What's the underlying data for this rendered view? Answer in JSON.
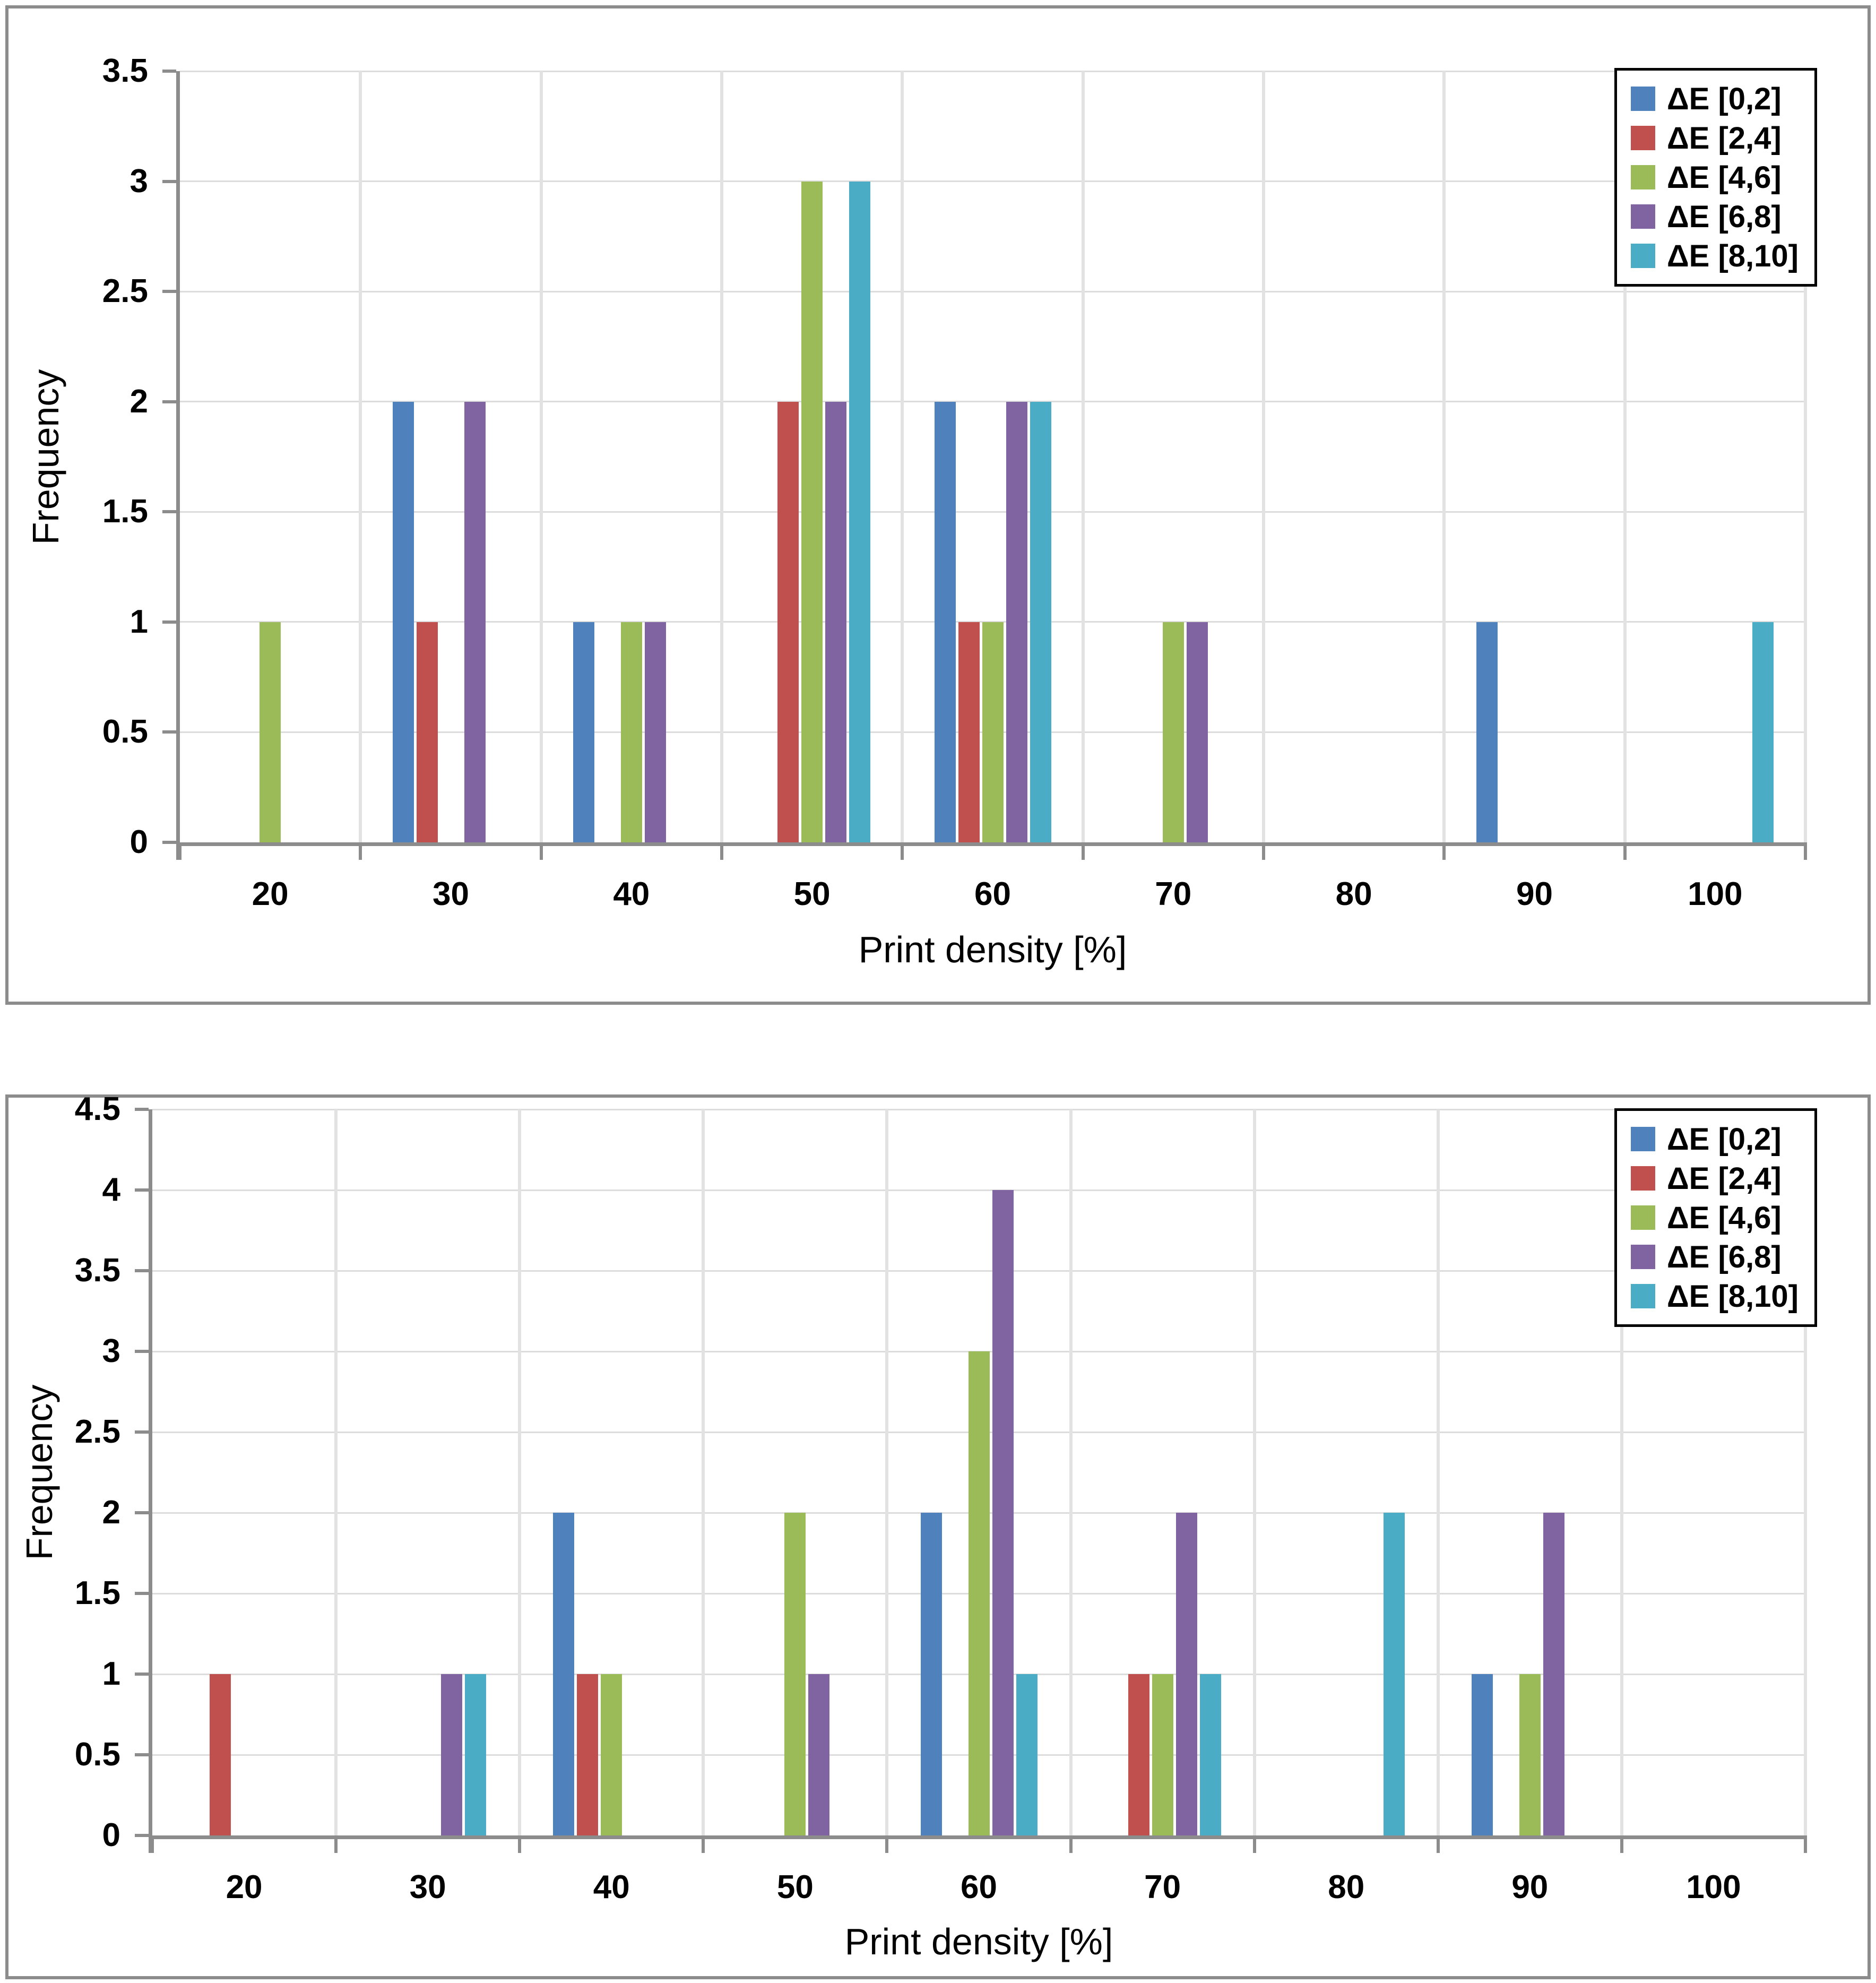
{
  "theme": {
    "background": "#FFFFFF",
    "frame_border": "#8C8C8C",
    "axis_color": "#8C8C8C",
    "gridline_horizontal": "#DCDCDC",
    "gridline_vertical": "#E2E2E2",
    "legend_border": "#000000",
    "text_color": "#000000"
  },
  "chart_data": [
    {
      "type": "bar",
      "title": "",
      "xlabel": "Print density [%]",
      "ylabel": "Frequency",
      "categories": [
        "20",
        "30",
        "40",
        "50",
        "60",
        "70",
        "80",
        "90",
        "100"
      ],
      "yticks": [
        "0",
        "0.5",
        "1",
        "1.5",
        "2",
        "2.5",
        "3",
        "3.5"
      ],
      "ylim": [
        0,
        3.5
      ],
      "ytick_step": 0.5,
      "grid": true,
      "legend_position": "top-right",
      "series": [
        {
          "name": "ΔE [0,2]",
          "color": "#4F81BD",
          "values": [
            0,
            2,
            1,
            0,
            2,
            0,
            0,
            1,
            0
          ]
        },
        {
          "name": "ΔE [2,4]",
          "color": "#C0504D",
          "values": [
            0,
            1,
            0,
            2,
            1,
            0,
            0,
            0,
            0
          ]
        },
        {
          "name": "ΔE [4,6]",
          "color": "#9BBB59",
          "values": [
            1,
            0,
            1,
            3,
            1,
            1,
            0,
            0,
            0
          ]
        },
        {
          "name": "ΔE [6,8]",
          "color": "#8064A2",
          "values": [
            0,
            2,
            1,
            2,
            2,
            1,
            0,
            0,
            0
          ]
        },
        {
          "name": "ΔE [8,10]",
          "color": "#4BACC6",
          "values": [
            0,
            0,
            0,
            3,
            2,
            0,
            0,
            0,
            1
          ]
        }
      ]
    },
    {
      "type": "bar",
      "title": "",
      "xlabel": "Print density [%]",
      "ylabel": "Frequency",
      "categories": [
        "20",
        "30",
        "40",
        "50",
        "60",
        "70",
        "80",
        "90",
        "100"
      ],
      "yticks": [
        "0",
        "0.5",
        "1",
        "1.5",
        "2",
        "2.5",
        "3",
        "3.5",
        "4",
        "4.5"
      ],
      "ylim": [
        0,
        4.5
      ],
      "ytick_step": 0.5,
      "grid": true,
      "legend_position": "top-right",
      "series": [
        {
          "name": "ΔE [0,2]",
          "color": "#4F81BD",
          "values": [
            0,
            0,
            2,
            0,
            2,
            0,
            0,
            1,
            0
          ]
        },
        {
          "name": "ΔE [2,4]",
          "color": "#C0504D",
          "values": [
            1,
            0,
            1,
            0,
            0,
            1,
            0,
            0,
            0
          ]
        },
        {
          "name": "ΔE [4,6]",
          "color": "#9BBB59",
          "values": [
            0,
            0,
            1,
            2,
            3,
            1,
            0,
            1,
            0
          ]
        },
        {
          "name": "ΔE [6,8]",
          "color": "#8064A2",
          "values": [
            0,
            1,
            0,
            1,
            4,
            2,
            0,
            2,
            0
          ]
        },
        {
          "name": "ΔE [8,10]",
          "color": "#4BACC6",
          "values": [
            0,
            1,
            0,
            0,
            1,
            1,
            2,
            0,
            0
          ]
        }
      ]
    }
  ]
}
